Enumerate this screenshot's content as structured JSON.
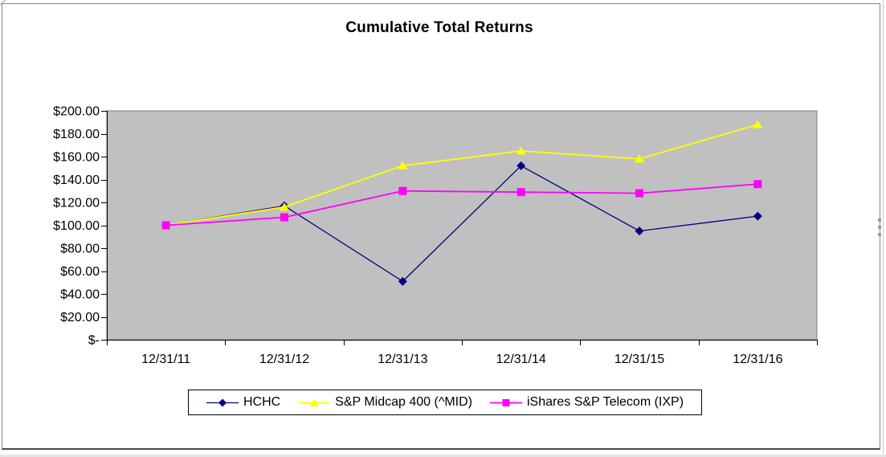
{
  "window": {
    "frame_color": "#8a8a8a"
  },
  "chart": {
    "plot_bg": "#c0c0c0",
    "plot_border": "#808080",
    "axis_color": "#000000",
    "text_color": "#000000",
    "legend_bg": "#ffffff",
    "legend_border": "#000000"
  },
  "chart_data": {
    "type": "line",
    "title": "Cumulative Total Returns",
    "xlabel": "",
    "ylabel": "",
    "categories": [
      "12/31/11",
      "12/31/12",
      "12/31/13",
      "12/31/14",
      "12/31/15",
      "12/31/16"
    ],
    "series": [
      {
        "name": "HCHC",
        "color": "#000080",
        "marker": "diamond",
        "line_width": 1.3,
        "values": [
          100,
          117,
          51,
          152,
          95,
          108
        ]
      },
      {
        "name": "S&P Midcap 400 (^MID)",
        "color": "#ffff00",
        "marker": "triangle",
        "line_width": 1.8,
        "values": [
          100,
          116,
          152,
          165,
          158,
          188
        ]
      },
      {
        "name": "iShares S&P Telecom (IXP)",
        "color": "#ff00ff",
        "marker": "square",
        "line_width": 1.8,
        "values": [
          100,
          107,
          130,
          129,
          128,
          136
        ]
      }
    ],
    "ylim": [
      0,
      200
    ],
    "ytick_step": 20,
    "ytick_labels": [
      "$200.00",
      "$180.00",
      "$160.00",
      "$140.00",
      "$120.00",
      "$100.00",
      "$80.00",
      "$60.00",
      "$40.00",
      "$20.00",
      "$-"
    ],
    "grid": false,
    "legend_position": "bottom"
  }
}
